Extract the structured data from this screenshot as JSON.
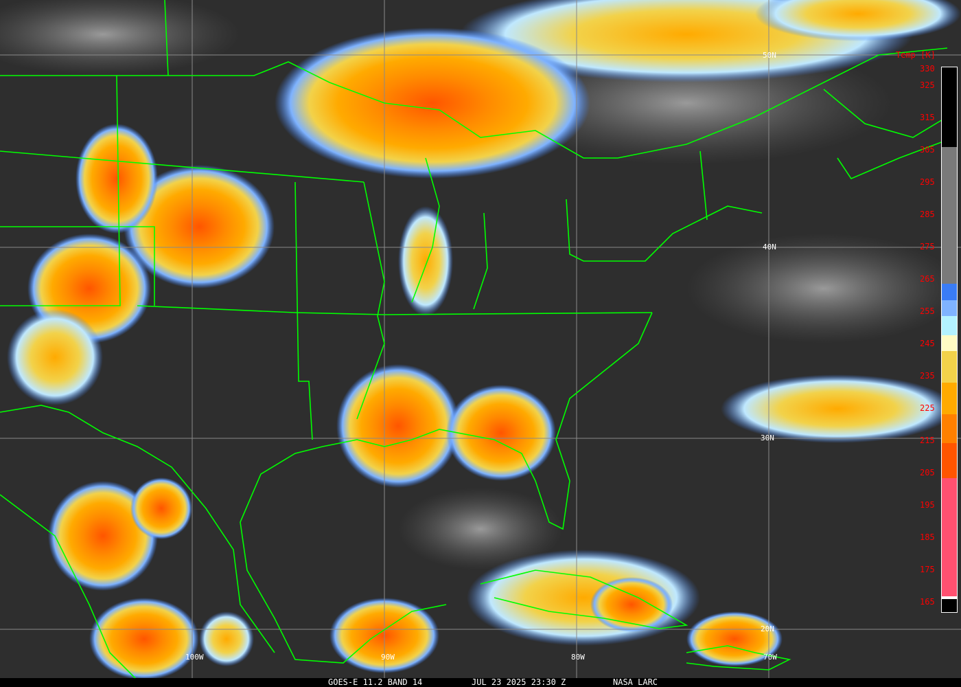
{
  "caption": {
    "satellite": "GOES-E 11.2 BAND 14",
    "datetime": "JUL 23 2025 23:30 Z",
    "source": "NASA LARC"
  },
  "legend": {
    "title": "Temp [K]",
    "ticks": [
      "330",
      "325",
      "315",
      "305",
      "295",
      "285",
      "275",
      "265",
      "255",
      "245",
      "235",
      "225",
      "215",
      "205",
      "195",
      "185",
      "175",
      "165"
    ],
    "colors": [
      {
        "from": 330,
        "to": 305,
        "color": "#000000"
      },
      {
        "from": 305,
        "to": 262,
        "color": "#7a7a7a"
      },
      {
        "from": 262,
        "to": 257,
        "color": "#3a7cf5"
      },
      {
        "from": 257,
        "to": 252,
        "color": "#7fb3ff"
      },
      {
        "from": 252,
        "to": 246,
        "color": "#b3f2ff"
      },
      {
        "from": 246,
        "to": 241,
        "color": "#fffcc4"
      },
      {
        "from": 241,
        "to": 231,
        "color": "#f2d24a"
      },
      {
        "from": 231,
        "to": 221,
        "color": "#ffaa00"
      },
      {
        "from": 221,
        "to": 212,
        "color": "#ff8000"
      },
      {
        "from": 212,
        "to": 201,
        "color": "#ff5500"
      },
      {
        "from": 201,
        "to": 164,
        "color": "#ff5070"
      }
    ]
  },
  "grid": {
    "latitudes": [
      "50N",
      "40N",
      "30N",
      "20N"
    ],
    "longitudes": [
      "100W",
      "90W",
      "80W",
      "70W"
    ]
  },
  "overlay_color": "#00ff00"
}
